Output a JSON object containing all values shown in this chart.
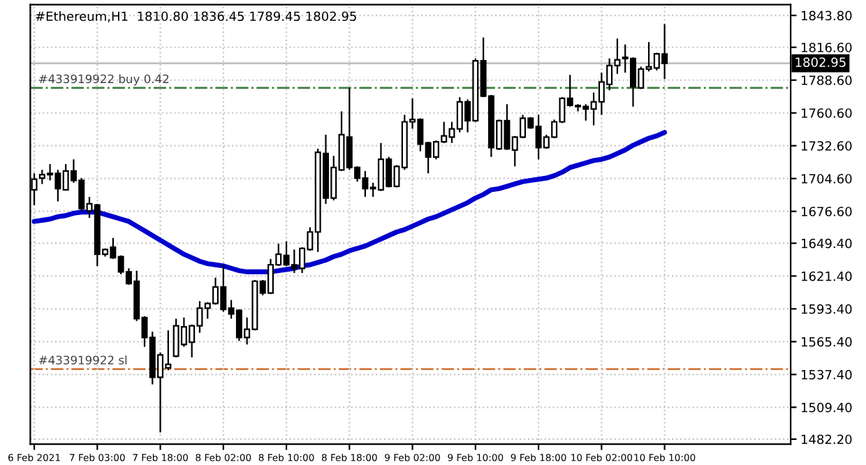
{
  "chart_data": {
    "type": "candlestick",
    "title": "#Ethereum,H1  1810.80 1836.45 1789.45 1802.95",
    "categories": [
      "6 Feb 2021",
      null,
      null,
      null,
      null,
      null,
      null,
      null,
      "7 Feb 03:00",
      null,
      null,
      null,
      null,
      null,
      null,
      null,
      "7 Feb 18:00",
      null,
      null,
      null,
      null,
      null,
      null,
      null,
      "8 Feb 02:00",
      null,
      null,
      null,
      null,
      null,
      null,
      null,
      "8 Feb 10:00",
      null,
      null,
      null,
      null,
      null,
      null,
      null,
      "8 Feb 18:00",
      null,
      null,
      null,
      null,
      null,
      null,
      null,
      "9 Feb 02:00",
      null,
      null,
      null,
      null,
      null,
      null,
      null,
      "9 Feb 10:00",
      null,
      null,
      null,
      null,
      null,
      null,
      null,
      "9 Feb 18:00",
      null,
      null,
      null,
      null,
      null,
      null,
      null,
      "10 Feb 02:00",
      null,
      null,
      null,
      null,
      null,
      null,
      null,
      "10 Feb 10:00"
    ],
    "ohlc": [
      [
        1695,
        1709,
        1682,
        1704
      ],
      [
        1705,
        1712,
        1700,
        1708
      ],
      [
        1708,
        1717,
        1703,
        1709
      ],
      [
        1709,
        1712,
        1685,
        1696
      ],
      [
        1695,
        1717,
        1695,
        1711
      ],
      [
        1711,
        1721,
        1701,
        1703
      ],
      [
        1703,
        1705,
        1677,
        1679
      ],
      [
        1677,
        1689,
        1671,
        1683
      ],
      [
        1682,
        1683,
        1630,
        1640
      ],
      [
        1640,
        1645,
        1638,
        1644
      ],
      [
        1646,
        1654,
        1636,
        1637
      ],
      [
        1638,
        1639,
        1623,
        1625
      ],
      [
        1625,
        1628,
        1614,
        1615
      ],
      [
        1617,
        1626,
        1583,
        1585
      ],
      [
        1586,
        1587,
        1561,
        1569
      ],
      [
        1569,
        1574,
        1529,
        1535
      ],
      [
        1535,
        1556,
        1488,
        1554
      ],
      [
        1543,
        1575,
        1541,
        1546
      ],
      [
        1553,
        1585,
        1552,
        1579
      ],
      [
        1563,
        1586,
        1561,
        1578
      ],
      [
        1565,
        1580,
        1552,
        1579
      ],
      [
        1579,
        1600,
        1573,
        1594
      ],
      [
        1594,
        1599,
        1585,
        1598
      ],
      [
        1598,
        1620,
        1597,
        1612
      ],
      [
        1612,
        1631,
        1591,
        1593
      ],
      [
        1594,
        1601,
        1585,
        1589
      ],
      [
        1592,
        1593,
        1566,
        1569
      ],
      [
        1569,
        1586,
        1563,
        1576
      ],
      [
        1576,
        1618,
        1575,
        1617
      ],
      [
        1617,
        1618,
        1605,
        1607
      ],
      [
        1607,
        1636,
        1606,
        1631
      ],
      [
        1631,
        1649,
        1630,
        1640
      ],
      [
        1639,
        1651,
        1630,
        1631
      ],
      [
        1631,
        1644,
        1624,
        1628
      ],
      [
        1628,
        1646,
        1624,
        1645
      ],
      [
        1644,
        1663,
        1643,
        1659
      ],
      [
        1659,
        1730,
        1642,
        1727
      ],
      [
        1726,
        1742,
        1683,
        1688
      ],
      [
        1688,
        1724,
        1686,
        1714
      ],
      [
        1712,
        1762,
        1711,
        1742
      ],
      [
        1740,
        1782,
        1712,
        1714
      ],
      [
        1714,
        1715,
        1702,
        1705
      ],
      [
        1705,
        1711,
        1689,
        1696
      ],
      [
        1697,
        1701,
        1689,
        1696
      ],
      [
        1695,
        1735,
        1694,
        1721
      ],
      [
        1721,
        1723,
        1697,
        1698
      ],
      [
        1698,
        1716,
        1697,
        1715
      ],
      [
        1714,
        1759,
        1712,
        1753
      ],
      [
        1753,
        1773,
        1747,
        1755
      ],
      [
        1755,
        1756,
        1728,
        1734
      ],
      [
        1735,
        1736,
        1709,
        1723
      ],
      [
        1723,
        1737,
        1721,
        1736
      ],
      [
        1736,
        1753,
        1735,
        1741
      ],
      [
        1740,
        1753,
        1735,
        1747
      ],
      [
        1747,
        1774,
        1744,
        1770
      ],
      [
        1770,
        1772,
        1744,
        1754
      ],
      [
        1754,
        1807,
        1753,
        1805
      ],
      [
        1805,
        1825,
        1774,
        1775
      ],
      [
        1775,
        1776,
        1723,
        1731
      ],
      [
        1730,
        1755,
        1729,
        1754
      ],
      [
        1754,
        1768,
        1729,
        1730
      ],
      [
        1729,
        1741,
        1715,
        1740
      ],
      [
        1740,
        1759,
        1739,
        1756
      ],
      [
        1756,
        1757,
        1747,
        1748
      ],
      [
        1749,
        1759,
        1721,
        1731
      ],
      [
        1731,
        1742,
        1730,
        1740
      ],
      [
        1740,
        1755,
        1739,
        1753
      ],
      [
        1753,
        1774,
        1752,
        1773
      ],
      [
        1773,
        1793,
        1766,
        1767
      ],
      [
        1767,
        1768,
        1762,
        1766
      ],
      [
        1766,
        1768,
        1754,
        1764
      ],
      [
        1764,
        1778,
        1750,
        1770
      ],
      [
        1770,
        1795,
        1759,
        1787
      ],
      [
        1785,
        1807,
        1780,
        1801
      ],
      [
        1801,
        1824,
        1794,
        1806
      ],
      [
        1807,
        1819,
        1795,
        1808
      ],
      [
        1807,
        1808,
        1766,
        1783
      ],
      [
        1782,
        1800,
        1781,
        1798
      ],
      [
        1798,
        1821,
        1796,
        1800
      ],
      [
        1799,
        1812,
        1797,
        1811
      ],
      [
        1810.8,
        1836.45,
        1789.45,
        1802.95
      ]
    ],
    "series": [
      {
        "type": "line",
        "color": "#0000cc",
        "values": [
          1668,
          1669,
          1670,
          1672,
          1673,
          1675,
          1676,
          1676,
          1676,
          1674,
          1672,
          1670,
          1668,
          1664,
          1660,
          1656,
          1652,
          1648,
          1644,
          1640,
          1637,
          1634,
          1632,
          1631,
          1630,
          1628,
          1626,
          1625,
          1625,
          1625,
          1625,
          1626,
          1627,
          1628,
          1630,
          1631,
          1633,
          1635,
          1638,
          1640,
          1643,
          1645,
          1647,
          1650,
          1653,
          1656,
          1659,
          1661,
          1664,
          1667,
          1670,
          1672,
          1675,
          1678,
          1681,
          1684,
          1688,
          1691,
          1695,
          1696,
          1698,
          1700,
          1702,
          1703,
          1704,
          1705,
          1707,
          1710,
          1714,
          1716,
          1718,
          1720,
          1721,
          1723,
          1726,
          1729,
          1733,
          1736,
          1739,
          1741,
          1744
        ]
      }
    ],
    "ylim": [
      1478,
      1853
    ],
    "yticks": [
      {
        "value": 1843.8,
        "label": "1843.80"
      },
      {
        "value": 1816.6,
        "label": "1816.60"
      },
      {
        "value": 1788.6,
        "label": "1788.60"
      },
      {
        "value": 1760.6,
        "label": "1760.60"
      },
      {
        "value": 1732.6,
        "label": "1732.60"
      },
      {
        "value": 1704.6,
        "label": "1704.60"
      },
      {
        "value": 1676.6,
        "label": "1676.60"
      },
      {
        "value": 1649.4,
        "label": "1649.40"
      },
      {
        "value": 1621.4,
        "label": "1621.40"
      },
      {
        "value": 1593.4,
        "label": "1593.40"
      },
      {
        "value": 1565.4,
        "label": "1565.40"
      },
      {
        "value": 1537.4,
        "label": "1537.40"
      },
      {
        "value": 1509.4,
        "label": "1509.40"
      },
      {
        "value": 1482.2,
        "label": "1482.20"
      }
    ],
    "ref_lines": [
      {
        "axis": "y",
        "value": 1782,
        "label": "#433919922 buy 0.42",
        "color": "#3a7d3a",
        "line_style": "dashdot"
      },
      {
        "axis": "y",
        "value": 1542,
        "label": "#433919922 sl",
        "color": "#d2783c",
        "line_style": "dashdot"
      },
      {
        "axis": "y",
        "value": 1802.95,
        "label": "1802.95",
        "color": "#c0c0c0",
        "line_style": "solid"
      }
    ],
    "grid": true
  }
}
